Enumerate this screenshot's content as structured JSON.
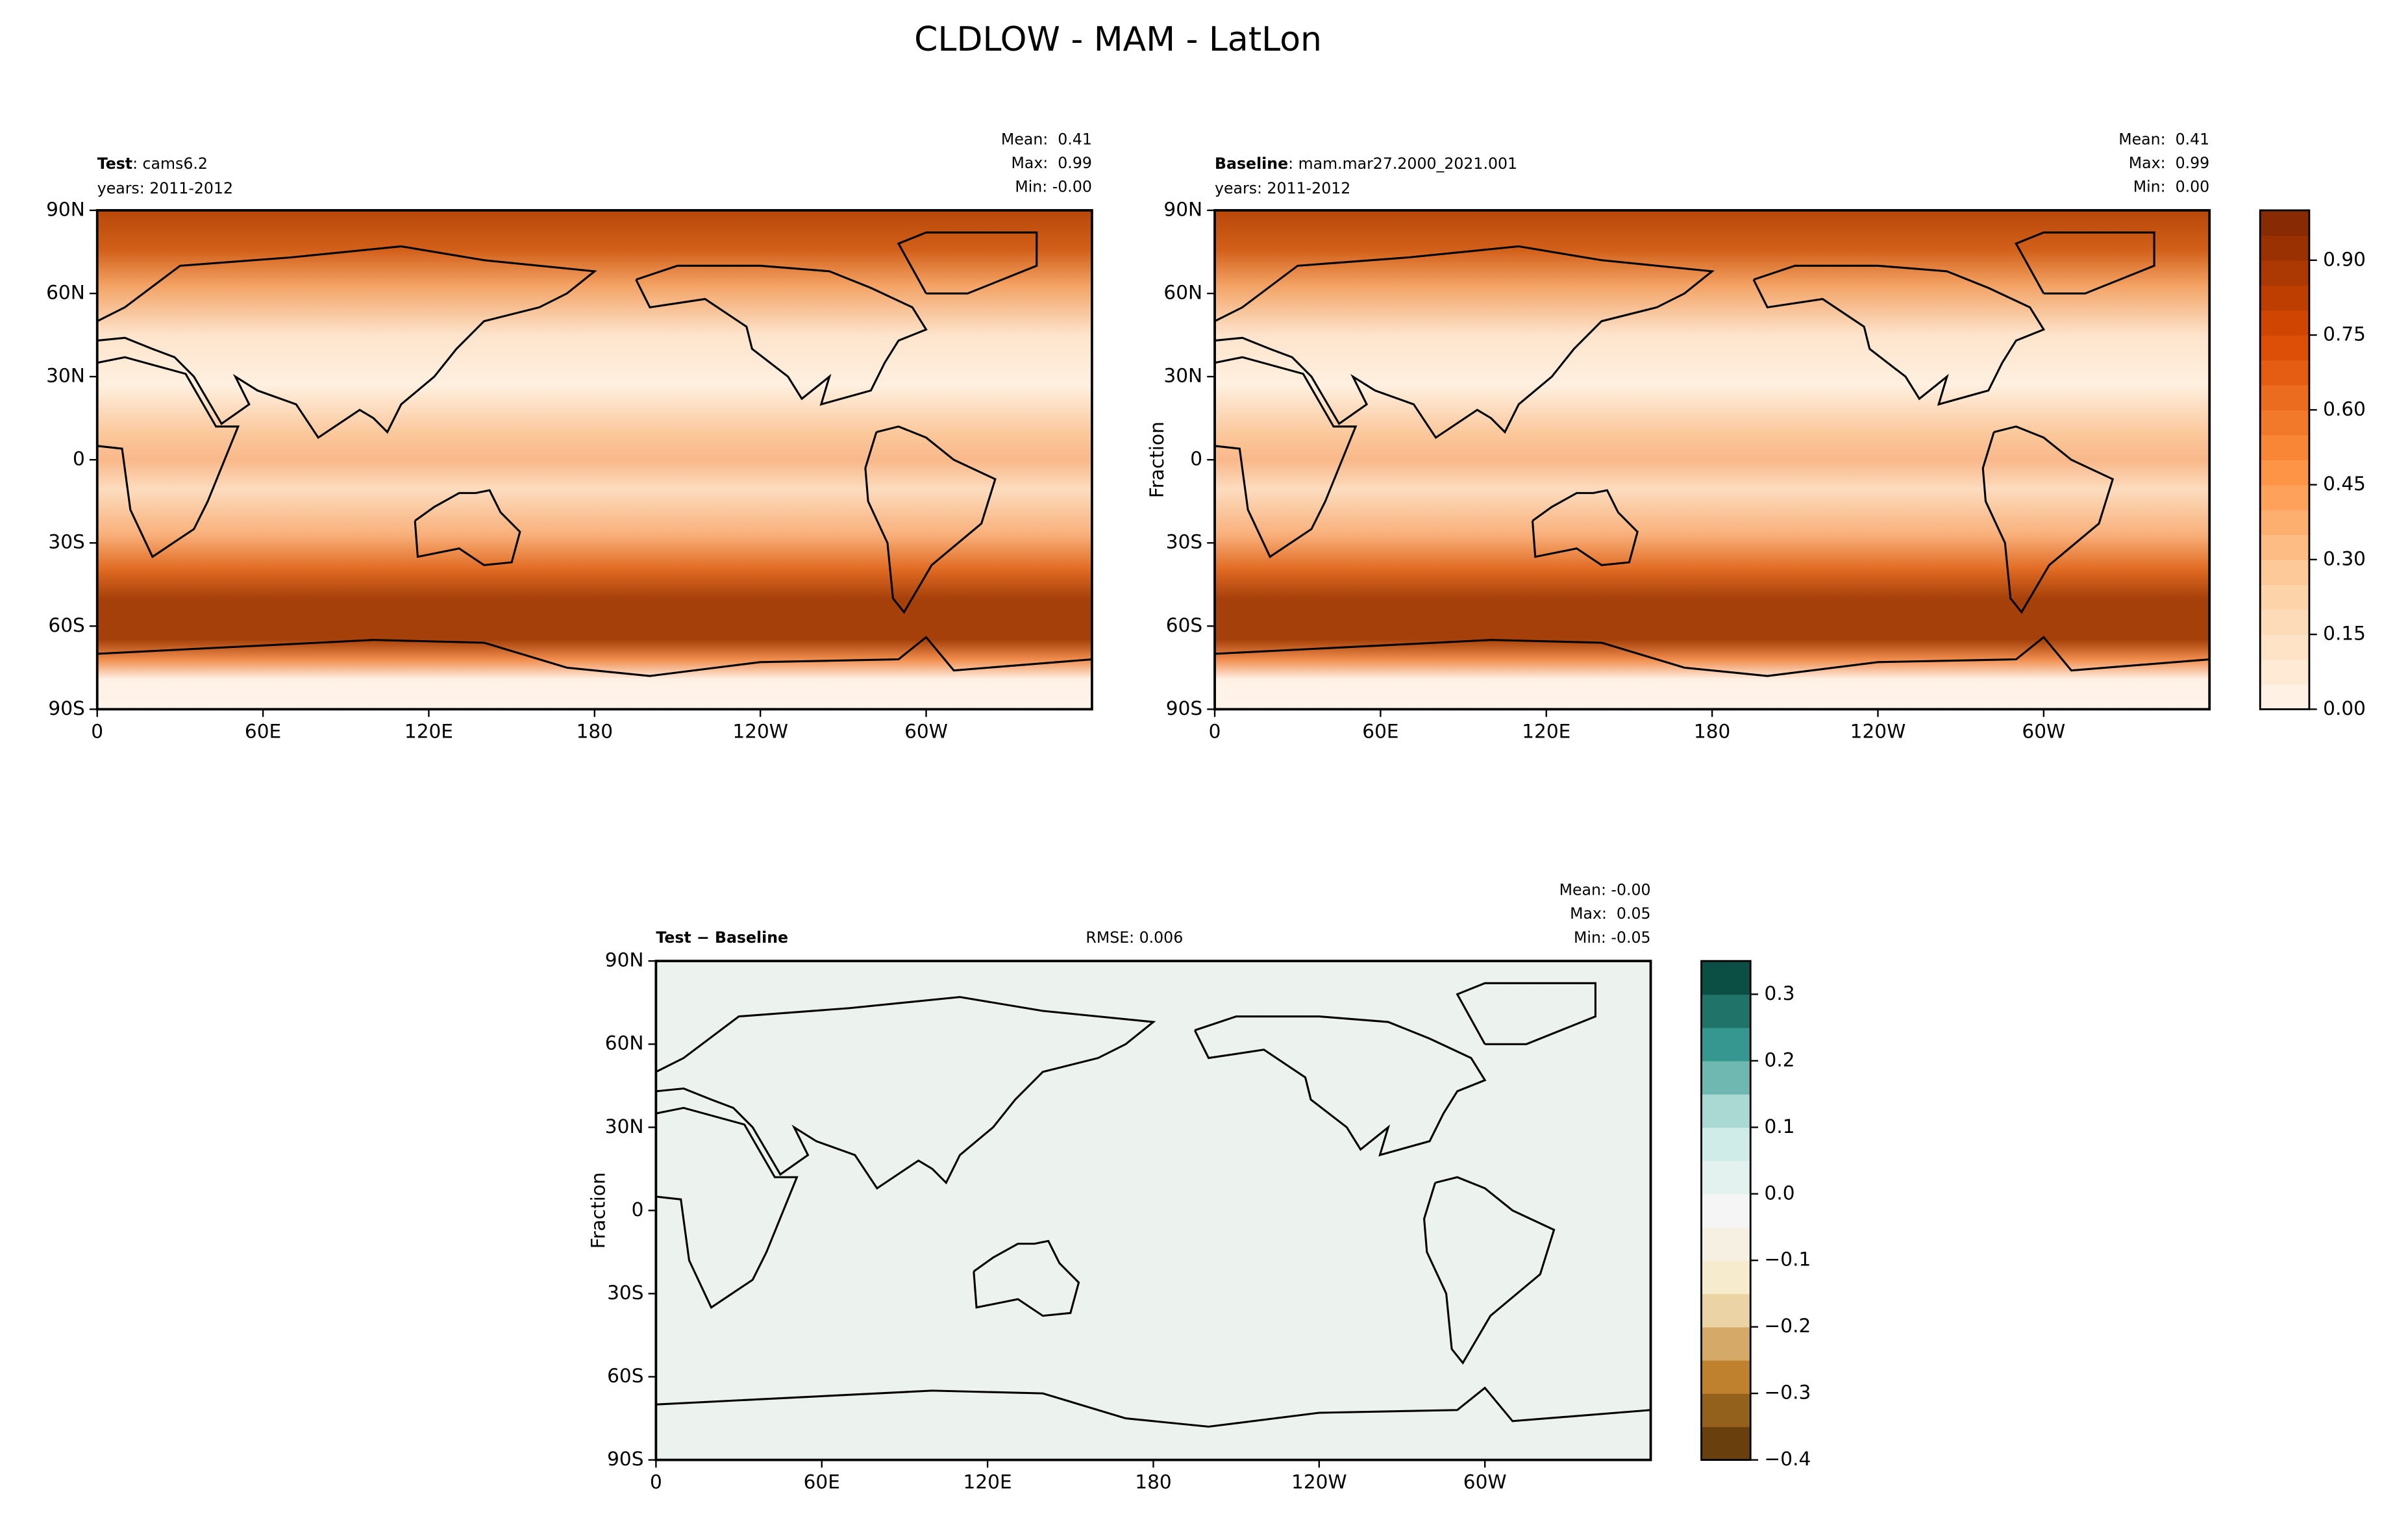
{
  "title": "CLDLOW - MAM - LatLon",
  "chart_data": [
    {
      "type": "map",
      "label": "Test",
      "case": ": cams6.2",
      "years": "years: 2011-2012",
      "stats": [
        "Mean:  0.41",
        "Max:  0.99",
        "Min: -0.00"
      ],
      "xlim": [
        0,
        360
      ],
      "ylim": [
        -90,
        90
      ],
      "xticks": [
        0,
        {
          "value": 60,
          "label": "60E"
        },
        {
          "value": 120,
          "label": "120E"
        },
        180,
        {
          "value": 240,
          "label": "120W"
        },
        {
          "value": 300,
          "label": "60W"
        }
      ],
      "yticks": [
        {
          "value": 90,
          "label": "90N"
        },
        {
          "value": 60,
          "label": "60N"
        },
        {
          "value": 30,
          "label": "30N"
        },
        0,
        {
          "value": -30,
          "label": "30S"
        },
        {
          "value": -60,
          "label": "60S"
        },
        {
          "value": -90,
          "label": "90S"
        }
      ]
    },
    {
      "type": "map",
      "label": "Baseline",
      "case": ": mam.mar27.2000_2021.001",
      "years": "years: 2011-2012",
      "stats": [
        "Mean:  0.41",
        "Max:  0.99",
        "Min:  0.00"
      ],
      "ylabel": "Fraction",
      "xlim": [
        0,
        360
      ],
      "ylim": [
        -90,
        90
      ],
      "xticks": [
        0,
        {
          "value": 60,
          "label": "60E"
        },
        {
          "value": 120,
          "label": "120E"
        },
        180,
        {
          "value": 240,
          "label": "120W"
        },
        {
          "value": 300,
          "label": "60W"
        }
      ],
      "yticks": [
        {
          "value": 90,
          "label": "90N"
        },
        {
          "value": 60,
          "label": "60N"
        },
        {
          "value": 30,
          "label": "30N"
        },
        0,
        {
          "value": -30,
          "label": "30S"
        },
        {
          "value": -60,
          "label": "60S"
        },
        {
          "value": -90,
          "label": "90S"
        }
      ],
      "colorbar": {
        "lim": [
          0,
          1
        ],
        "levels": 20,
        "colors": [
          "#fff5eb",
          "#fdd0a2",
          "#fd8d3c",
          "#d94801",
          "#7f2704"
        ],
        "ticks": [
          {
            "value": 0,
            "label": "0.00"
          },
          0.15,
          {
            "value": 0.3,
            "label": "0.30"
          },
          0.45,
          {
            "value": 0.6,
            "label": "0.60"
          },
          0.75,
          {
            "value": 0.9,
            "label": "0.90"
          }
        ]
      }
    },
    {
      "type": "map",
      "label": "Test − Baseline",
      "rmse": "RMSE: 0.006",
      "stats": [
        "Mean: -0.00",
        "Max:  0.05",
        "Min: -0.05"
      ],
      "ylabel": "Fraction",
      "xlim": [
        0,
        360
      ],
      "ylim": [
        -90,
        90
      ],
      "xticks": [
        0,
        {
          "value": 60,
          "label": "60E"
        },
        {
          "value": 120,
          "label": "120E"
        },
        180,
        {
          "value": 240,
          "label": "120W"
        },
        {
          "value": 300,
          "label": "60W"
        }
      ],
      "yticks": [
        {
          "value": 90,
          "label": "90N"
        },
        {
          "value": 60,
          "label": "60N"
        },
        {
          "value": 30,
          "label": "30N"
        },
        0,
        {
          "value": -30,
          "label": "30S"
        },
        {
          "value": -60,
          "label": "60S"
        },
        {
          "value": -90,
          "label": "90S"
        }
      ],
      "colorbar": {
        "lim": [
          -0.4,
          0.35
        ],
        "levels": 15,
        "colors": [
          "#543005",
          "#bf812d",
          "#f6e8c3",
          "#f5f5f5",
          "#c7eae5",
          "#35978f",
          "#003c30"
        ],
        "ticks": [
          {
            "value": 0.3,
            "label": "0.3"
          },
          0.2,
          0.1,
          {
            "value": 0,
            "label": "0.0"
          },
          {
            "value": -0.1,
            "label": "−0.1"
          },
          {
            "value": -0.2,
            "label": "−0.2"
          },
          {
            "value": -0.3,
            "label": "−0.3"
          },
          {
            "value": -0.4,
            "label": "−0.4"
          }
        ]
      }
    }
  ]
}
